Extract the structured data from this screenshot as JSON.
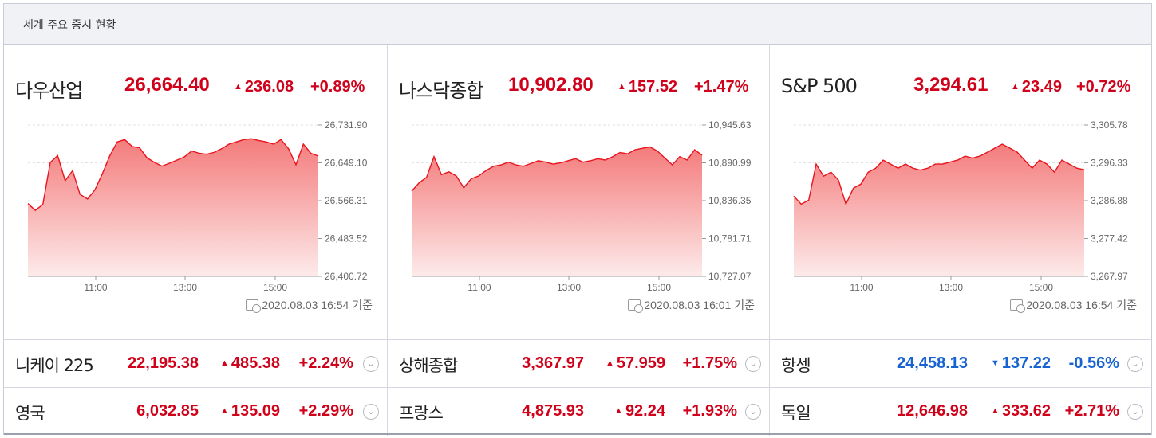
{
  "header": {
    "title": "세계 주요 증시 현황"
  },
  "indices": [
    {
      "name": "다우산업",
      "value": "26,664.40",
      "change": "236.08",
      "rate": "+0.89%",
      "timestamp": "2020.08.03 16:54 기준",
      "y_ticks": [
        "26,731.90",
        "26,649.10",
        "26,566.31",
        "26,483.52",
        "26,400.72"
      ],
      "x_ticks": [
        "11:00",
        "13:00",
        "15:00"
      ]
    },
    {
      "name": "나스닥종합",
      "value": "10,902.80",
      "change": "157.52",
      "rate": "+1.47%",
      "timestamp": "2020.08.03 16:01 기준",
      "y_ticks": [
        "10,945.63",
        "10,890.99",
        "10,836.35",
        "10,781.71",
        "10,727.07"
      ],
      "x_ticks": [
        "11:00",
        "13:00",
        "15:00"
      ]
    },
    {
      "name": "S&P 500",
      "value": "3,294.61",
      "change": "23.49",
      "rate": "+0.72%",
      "timestamp": "2020.08.03 16:54 기준",
      "y_ticks": [
        "3,305.78",
        "3,296.33",
        "3,286.88",
        "3,277.42",
        "3,267.97"
      ],
      "x_ticks": [
        "11:00",
        "13:00",
        "15:00"
      ]
    }
  ],
  "markets": [
    [
      {
        "name": "니케이 225",
        "value": "22,195.38",
        "change": "485.38",
        "rate": "+2.24%",
        "dir": "up"
      },
      {
        "name": "상해종합",
        "value": "3,367.97",
        "change": "57.959",
        "rate": "+1.75%",
        "dir": "up"
      },
      {
        "name": "항셍",
        "value": "24,458.13",
        "change": "137.22",
        "rate": "-0.56%",
        "dir": "down"
      }
    ],
    [
      {
        "name": "영국",
        "value": "6,032.85",
        "change": "135.09",
        "rate": "+2.29%",
        "dir": "up"
      },
      {
        "name": "프랑스",
        "value": "4,875.93",
        "change": "92.24",
        "rate": "+1.93%",
        "dir": "up"
      },
      {
        "name": "독일",
        "value": "12,646.98",
        "change": "333.62",
        "rate": "+2.71%",
        "dir": "up"
      }
    ]
  ],
  "symbols": {
    "up": "▲",
    "down": "▼",
    "more": "⌄"
  },
  "colors": {
    "up": "#d0021b",
    "down": "#1663d1",
    "line": "#e8141e",
    "fill_top": "#f47b7b",
    "fill_bottom": "#fdeaea"
  },
  "chart_data": [
    {
      "type": "area",
      "title": "다우산업",
      "x": [
        "09:30",
        "09:40",
        "09:50",
        "10:00",
        "10:10",
        "10:20",
        "10:30",
        "10:40",
        "10:50",
        "11:00",
        "11:10",
        "11:20",
        "11:30",
        "11:40",
        "11:50",
        "12:00",
        "12:10",
        "12:20",
        "12:30",
        "12:40",
        "12:50",
        "13:00",
        "13:10",
        "13:20",
        "13:30",
        "13:40",
        "13:50",
        "14:00",
        "14:10",
        "14:20",
        "14:30",
        "14:40",
        "14:50",
        "15:00",
        "15:10",
        "15:20",
        "15:30",
        "15:40",
        "15:50",
        "16:00"
      ],
      "values": [
        26560,
        26545,
        26558,
        26650,
        26665,
        26610,
        26632,
        26580,
        26570,
        26590,
        26625,
        26665,
        26695,
        26700,
        26685,
        26682,
        26660,
        26650,
        26642,
        26648,
        26655,
        26662,
        26675,
        26670,
        26668,
        26672,
        26680,
        26690,
        26695,
        26700,
        26702,
        26698,
        26695,
        26690,
        26700,
        26680,
        26645,
        26690,
        26670,
        26664
      ],
      "xlabel": "",
      "ylabel": "",
      "ylim": [
        26400.72,
        26731.9
      ],
      "x_ticks": [
        "11:00",
        "13:00",
        "15:00"
      ]
    },
    {
      "type": "area",
      "title": "나스닥종합",
      "x": [
        "09:30",
        "09:40",
        "09:50",
        "10:00",
        "10:10",
        "10:20",
        "10:30",
        "10:40",
        "10:50",
        "11:00",
        "11:10",
        "11:20",
        "11:30",
        "11:40",
        "11:50",
        "12:00",
        "12:10",
        "12:20",
        "12:30",
        "12:40",
        "12:50",
        "13:00",
        "13:10",
        "13:20",
        "13:30",
        "13:40",
        "13:50",
        "14:00",
        "14:10",
        "14:20",
        "14:30",
        "14:40",
        "14:50",
        "15:00",
        "15:10",
        "15:20",
        "15:30",
        "15:40",
        "15:50",
        "16:00"
      ],
      "values": [
        10850,
        10862,
        10870,
        10900,
        10874,
        10878,
        10872,
        10855,
        10868,
        10872,
        10880,
        10886,
        10888,
        10892,
        10888,
        10886,
        10890,
        10894,
        10892,
        10889,
        10891,
        10894,
        10897,
        10892,
        10894,
        10897,
        10895,
        10900,
        10906,
        10904,
        10910,
        10912,
        10914,
        10908,
        10898,
        10888,
        10900,
        10895,
        10910,
        10902
      ],
      "xlabel": "",
      "ylabel": "",
      "ylim": [
        10727.07,
        10945.63
      ],
      "x_ticks": [
        "11:00",
        "13:00",
        "15:00"
      ]
    },
    {
      "type": "area",
      "title": "S&P 500",
      "x": [
        "09:30",
        "09:40",
        "09:50",
        "10:00",
        "10:10",
        "10:20",
        "10:30",
        "10:40",
        "10:50",
        "11:00",
        "11:10",
        "11:20",
        "11:30",
        "11:40",
        "11:50",
        "12:00",
        "12:10",
        "12:20",
        "12:30",
        "12:40",
        "12:50",
        "13:00",
        "13:10",
        "13:20",
        "13:30",
        "13:40",
        "13:50",
        "14:00",
        "14:10",
        "14:20",
        "14:30",
        "14:40",
        "14:50",
        "15:00",
        "15:10",
        "15:20",
        "15:30",
        "15:40",
        "15:50",
        "16:00"
      ],
      "values": [
        3288,
        3286,
        3287,
        3296,
        3293,
        3294,
        3292,
        3286,
        3290,
        3291,
        3294,
        3295,
        3297,
        3296,
        3295,
        3296,
        3295,
        3294.5,
        3295,
        3296,
        3296,
        3296.5,
        3297,
        3298,
        3297.5,
        3298,
        3299,
        3300,
        3301,
        3300,
        3299,
        3297,
        3295,
        3297,
        3296,
        3294,
        3297,
        3296,
        3295,
        3294.6
      ],
      "xlabel": "",
      "ylabel": "",
      "ylim": [
        3267.97,
        3305.78
      ],
      "x_ticks": [
        "11:00",
        "13:00",
        "15:00"
      ]
    }
  ]
}
